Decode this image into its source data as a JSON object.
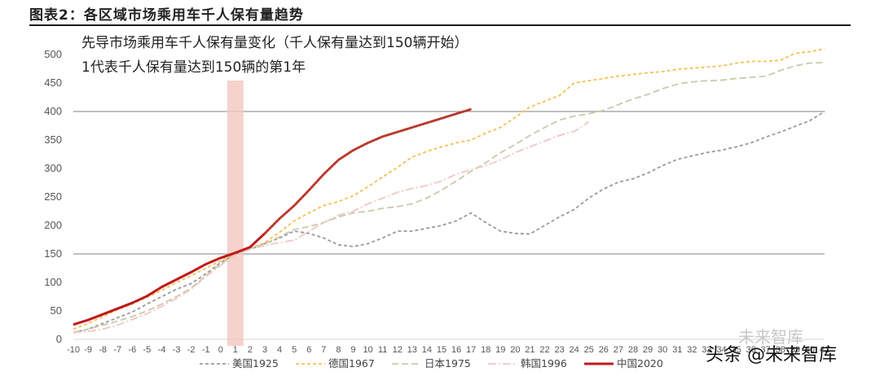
{
  "figure_title": "图表2：各区域市场乘用车千人保有量趋势",
  "watermark": {
    "text": "头条 @未来智库",
    "faded_text": "未来智库"
  },
  "chart_data": {
    "type": "line",
    "title": "先导市场乘用车千人保有量变化（千人保有量达到150辆开始）",
    "subtitle": "1代表千人保有量达到150辆的第1年",
    "xlabel": "",
    "ylabel": "",
    "x": [
      -10,
      -9,
      -8,
      -7,
      -6,
      -5,
      -4,
      -3,
      -2,
      -1,
      0,
      1,
      2,
      3,
      4,
      5,
      6,
      7,
      8,
      9,
      10,
      11,
      12,
      13,
      14,
      15,
      16,
      17,
      18,
      19,
      20,
      21,
      22,
      23,
      24,
      25,
      26,
      27,
      28,
      29,
      30,
      31,
      32,
      33,
      34,
      35,
      36,
      37,
      38,
      39,
      40,
      41
    ],
    "ylim": [
      0,
      500
    ],
    "yticks": [
      0,
      50,
      100,
      150,
      200,
      250,
      300,
      350,
      400,
      450,
      500
    ],
    "grid": "horizontal",
    "reference_lines": [
      150,
      400
    ],
    "highlight_x": 1,
    "legend_position": "bottom",
    "series": [
      {
        "name": "美国1925",
        "color": "#9a9a9a",
        "dash": "4 3",
        "points": [
          [
            -10,
            12
          ],
          [
            -9,
            18
          ],
          [
            -8,
            28
          ],
          [
            -7,
            38
          ],
          [
            -6,
            48
          ],
          [
            -5,
            62
          ],
          [
            -4,
            75
          ],
          [
            -3,
            88
          ],
          [
            -2,
            98
          ],
          [
            -1,
            115
          ],
          [
            0,
            135
          ],
          [
            1,
            150
          ],
          [
            2,
            158
          ],
          [
            3,
            168
          ],
          [
            4,
            178
          ],
          [
            5,
            190
          ],
          [
            6,
            186
          ],
          [
            7,
            178
          ],
          [
            8,
            166
          ],
          [
            9,
            163
          ],
          [
            10,
            168
          ],
          [
            11,
            178
          ],
          [
            12,
            190
          ],
          [
            13,
            190
          ],
          [
            14,
            195
          ],
          [
            15,
            200
          ],
          [
            16,
            208
          ],
          [
            17,
            222
          ],
          [
            18,
            205
          ],
          [
            19,
            190
          ],
          [
            20,
            186
          ],
          [
            21,
            185
          ],
          [
            22,
            200
          ],
          [
            23,
            215
          ],
          [
            24,
            228
          ],
          [
            25,
            248
          ],
          [
            26,
            264
          ],
          [
            27,
            276
          ],
          [
            28,
            282
          ],
          [
            29,
            292
          ],
          [
            30,
            305
          ],
          [
            31,
            316
          ],
          [
            32,
            322
          ],
          [
            33,
            328
          ],
          [
            34,
            332
          ],
          [
            35,
            338
          ],
          [
            36,
            345
          ],
          [
            37,
            355
          ],
          [
            38,
            364
          ],
          [
            39,
            374
          ],
          [
            40,
            384
          ],
          [
            41,
            400
          ]
        ]
      },
      {
        "name": "德国1967",
        "color": "#f5c054",
        "dash": "4 3",
        "points": [
          [
            -10,
            18
          ],
          [
            -9,
            28
          ],
          [
            -8,
            40
          ],
          [
            -7,
            52
          ],
          [
            -6,
            62
          ],
          [
            -5,
            74
          ],
          [
            -4,
            86
          ],
          [
            -3,
            100
          ],
          [
            -2,
            112
          ],
          [
            -1,
            125
          ],
          [
            0,
            138
          ],
          [
            1,
            150
          ],
          [
            2,
            160
          ],
          [
            3,
            170
          ],
          [
            4,
            188
          ],
          [
            5,
            208
          ],
          [
            6,
            222
          ],
          [
            7,
            235
          ],
          [
            8,
            242
          ],
          [
            9,
            252
          ],
          [
            10,
            268
          ],
          [
            11,
            285
          ],
          [
            12,
            302
          ],
          [
            13,
            320
          ],
          [
            14,
            330
          ],
          [
            15,
            338
          ],
          [
            16,
            345
          ],
          [
            17,
            350
          ],
          [
            18,
            362
          ],
          [
            19,
            372
          ],
          [
            20,
            390
          ],
          [
            21,
            408
          ],
          [
            22,
            418
          ],
          [
            23,
            428
          ],
          [
            24,
            450
          ],
          [
            25,
            454
          ],
          [
            26,
            458
          ],
          [
            27,
            462
          ],
          [
            28,
            465
          ],
          [
            29,
            468
          ],
          [
            30,
            470
          ],
          [
            31,
            474
          ],
          [
            32,
            476
          ],
          [
            33,
            478
          ],
          [
            34,
            480
          ],
          [
            35,
            485
          ],
          [
            36,
            488
          ],
          [
            37,
            488
          ],
          [
            38,
            490
          ],
          [
            39,
            502
          ],
          [
            40,
            505
          ],
          [
            41,
            510
          ]
        ]
      },
      {
        "name": "日本1975",
        "color": "#c9c9ac",
        "dash": "8 4",
        "points": [
          [
            -10,
            12
          ],
          [
            -9,
            18
          ],
          [
            -8,
            25
          ],
          [
            -7,
            32
          ],
          [
            -6,
            40
          ],
          [
            -5,
            50
          ],
          [
            -4,
            62
          ],
          [
            -3,
            75
          ],
          [
            -2,
            90
          ],
          [
            -1,
            112
          ],
          [
            0,
            132
          ],
          [
            1,
            150
          ],
          [
            2,
            160
          ],
          [
            3,
            168
          ],
          [
            4,
            180
          ],
          [
            5,
            193
          ],
          [
            6,
            198
          ],
          [
            7,
            205
          ],
          [
            8,
            215
          ],
          [
            9,
            222
          ],
          [
            10,
            225
          ],
          [
            11,
            230
          ],
          [
            12,
            233
          ],
          [
            13,
            238
          ],
          [
            14,
            248
          ],
          [
            15,
            262
          ],
          [
            16,
            278
          ],
          [
            17,
            295
          ],
          [
            18,
            310
          ],
          [
            19,
            328
          ],
          [
            20,
            342
          ],
          [
            21,
            358
          ],
          [
            22,
            372
          ],
          [
            23,
            385
          ],
          [
            24,
            392
          ],
          [
            25,
            396
          ],
          [
            26,
            402
          ],
          [
            27,
            412
          ],
          [
            28,
            422
          ],
          [
            29,
            430
          ],
          [
            30,
            440
          ],
          [
            31,
            448
          ],
          [
            32,
            452
          ],
          [
            33,
            454
          ],
          [
            34,
            455
          ],
          [
            35,
            458
          ],
          [
            36,
            460
          ],
          [
            37,
            462
          ],
          [
            38,
            472
          ],
          [
            39,
            480
          ],
          [
            40,
            485
          ],
          [
            41,
            486
          ]
        ]
      },
      {
        "name": "韩国1996",
        "color": "#f0c8c4",
        "dash": "10 3 2 3",
        "points": [
          [
            -10,
            12
          ],
          [
            -9,
            14
          ],
          [
            -8,
            18
          ],
          [
            -7,
            25
          ],
          [
            -6,
            35
          ],
          [
            -5,
            45
          ],
          [
            -4,
            58
          ],
          [
            -3,
            72
          ],
          [
            -2,
            88
          ],
          [
            -1,
            110
          ],
          [
            0,
            130
          ],
          [
            1,
            148
          ],
          [
            2,
            158
          ],
          [
            3,
            165
          ],
          [
            4,
            170
          ],
          [
            5,
            174
          ],
          [
            6,
            190
          ],
          [
            7,
            205
          ],
          [
            8,
            218
          ],
          [
            9,
            225
          ],
          [
            10,
            238
          ],
          [
            11,
            248
          ],
          [
            12,
            258
          ],
          [
            13,
            265
          ],
          [
            14,
            270
          ],
          [
            15,
            278
          ],
          [
            16,
            290
          ],
          [
            17,
            298
          ],
          [
            18,
            305
          ],
          [
            19,
            315
          ],
          [
            20,
            328
          ],
          [
            21,
            338
          ],
          [
            22,
            348
          ],
          [
            23,
            358
          ],
          [
            24,
            365
          ],
          [
            25,
            382
          ]
        ]
      },
      {
        "name": "中国2020",
        "color": "#c0181c",
        "dash": "",
        "points": [
          [
            -10,
            26
          ],
          [
            -9,
            34
          ],
          [
            -8,
            44
          ],
          [
            -7,
            54
          ],
          [
            -6,
            64
          ],
          [
            -5,
            76
          ],
          [
            -4,
            92
          ],
          [
            -3,
            105
          ],
          [
            -2,
            118
          ],
          [
            -1,
            132
          ],
          [
            0,
            143
          ],
          [
            1,
            152
          ],
          [
            2,
            162
          ],
          [
            3,
            186
          ]
        ]
      },
      {
        "name": "",
        "color": "#b83a2e",
        "dash": "2 2",
        "points": [
          [
            3,
            186
          ],
          [
            4,
            212
          ],
          [
            5,
            235
          ],
          [
            6,
            262
          ],
          [
            7,
            290
          ],
          [
            8,
            315
          ],
          [
            9,
            332
          ],
          [
            10,
            345
          ],
          [
            11,
            356
          ],
          [
            12,
            364
          ],
          [
            13,
            372
          ],
          [
            14,
            380
          ],
          [
            15,
            388
          ],
          [
            16,
            396
          ],
          [
            17,
            404
          ]
        ]
      }
    ]
  }
}
